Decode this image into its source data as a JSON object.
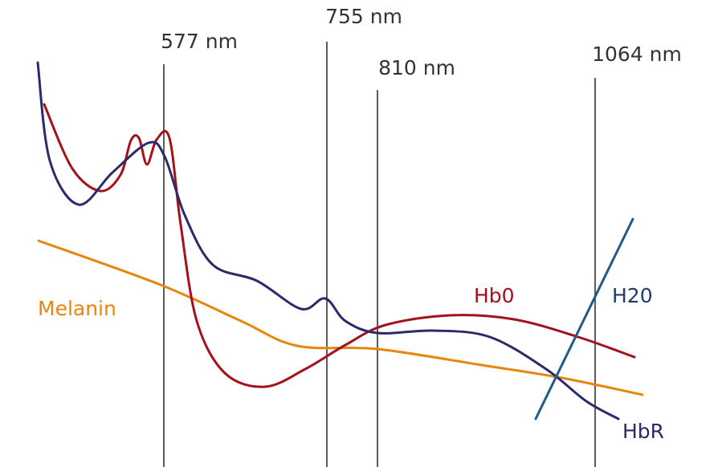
{
  "markers": [
    "577 nm",
    "755 nm",
    "810 nm",
    "1064 nm"
  ],
  "curves": {
    "melanin": "Melanin",
    "hbo": "Hb0",
    "h2o": "H20",
    "hbr": "HbR"
  }
}
